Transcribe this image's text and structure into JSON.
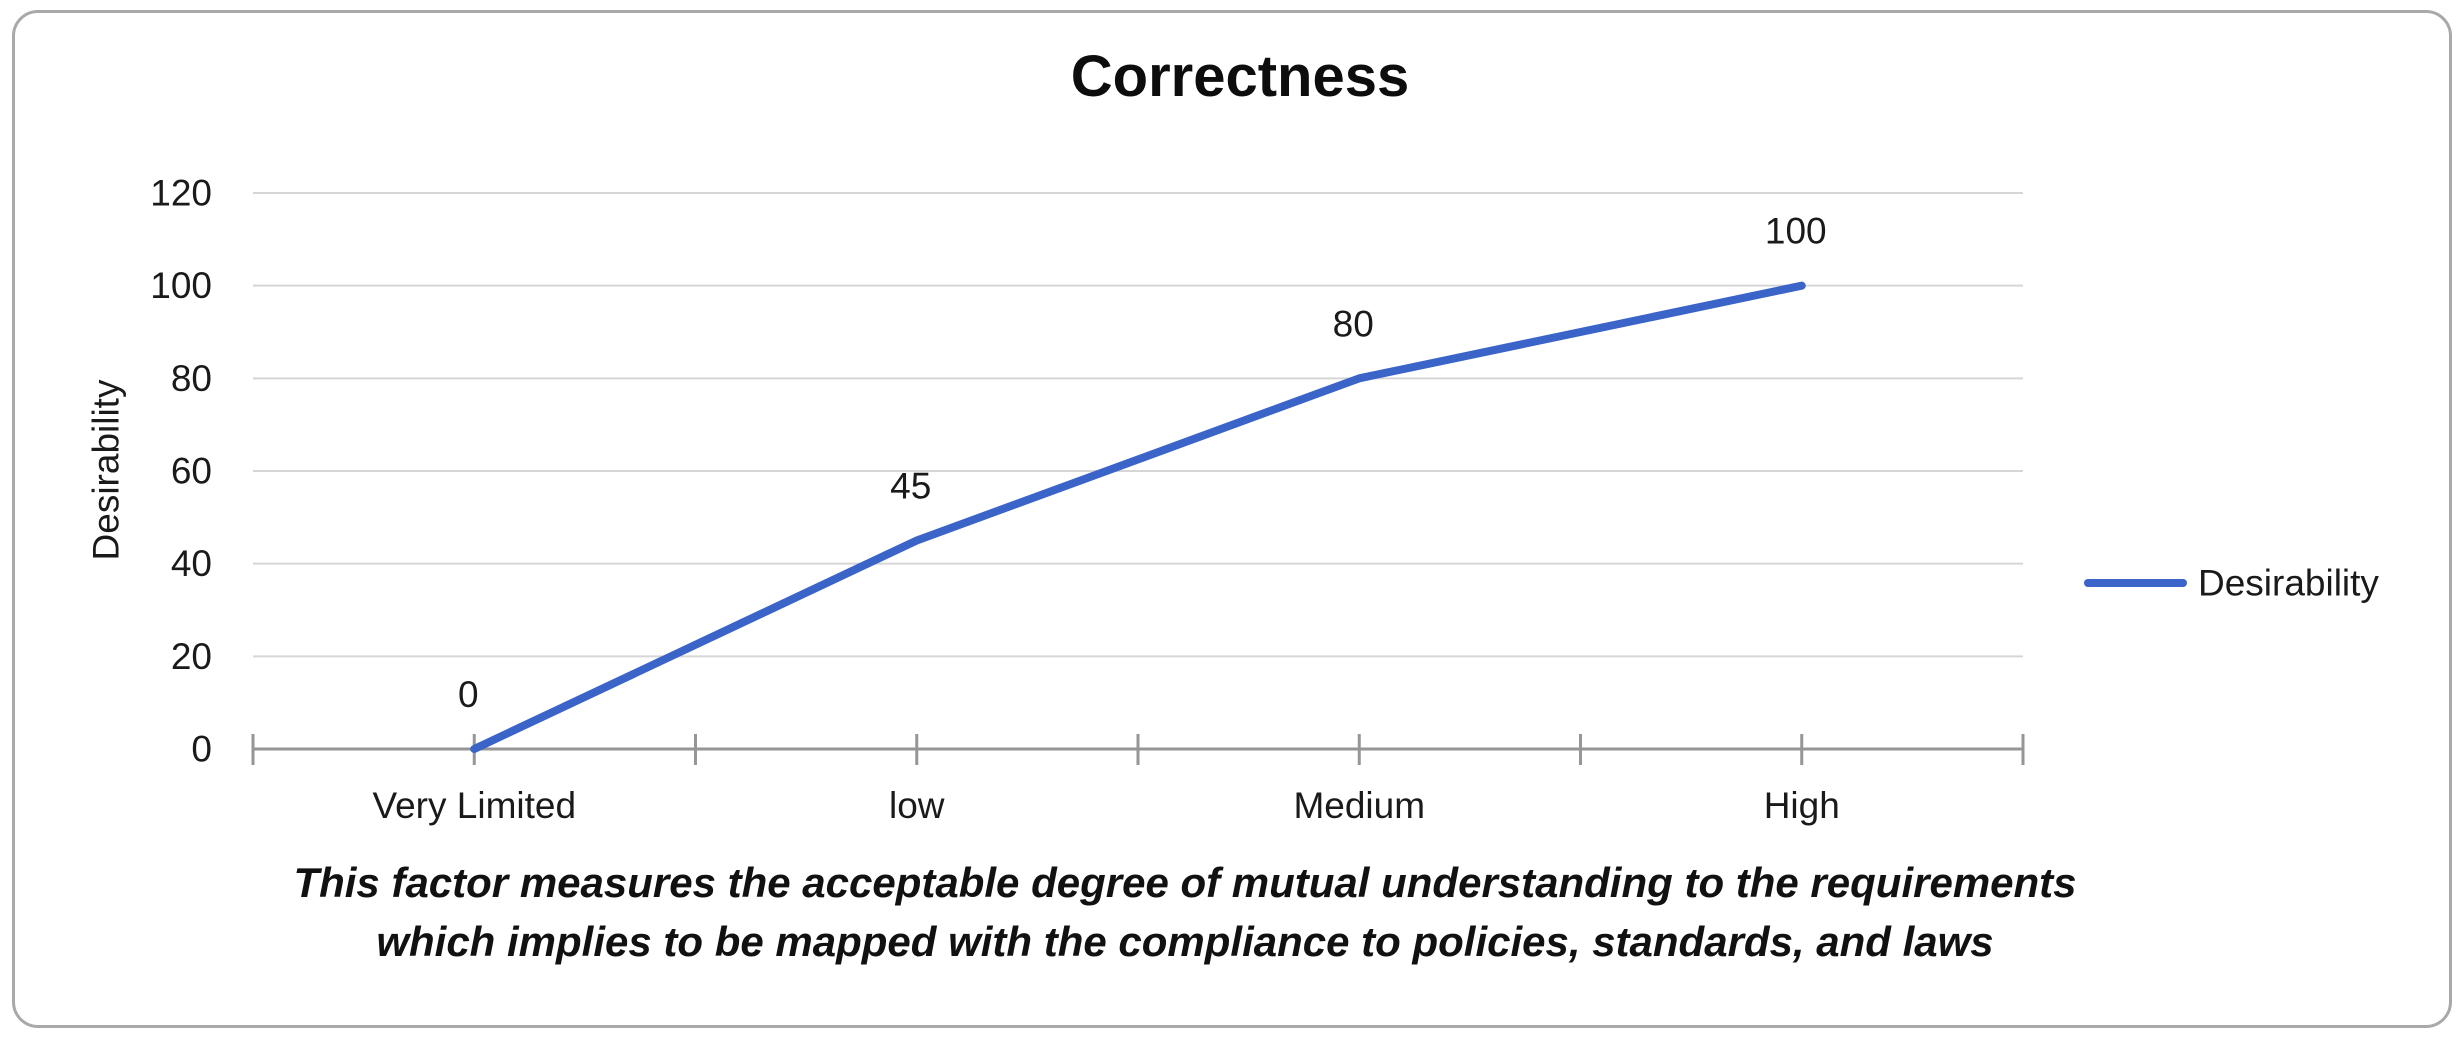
{
  "window": {
    "background_color": "#FFFFFF",
    "border_color": "#A9A9A9"
  },
  "chart": {
    "title": "Correctness",
    "y_axis": {
      "title": "Desirability"
    },
    "legend": {
      "label": "Desirability",
      "position": "right"
    },
    "caption": {
      "line1": "This factor measures the acceptable degree of mutual understanding to the requirements",
      "line2": "which implies to be mapped with the compliance to policies, standards, and laws"
    }
  },
  "colors": {
    "series_line": "#3A64C8",
    "gridline": "#D6D6D6",
    "axis": "#969696",
    "text": "#000000"
  },
  "chart_data": {
    "type": "line",
    "title": "Correctness",
    "categories": [
      "Very Limited",
      "low",
      "Medium",
      "High"
    ],
    "series": [
      {
        "name": "Desirability",
        "values": [
          0,
          45,
          80,
          100
        ]
      }
    ],
    "xlabel": "",
    "ylabel": "Desirability",
    "ylim": [
      0,
      120
    ],
    "yticks": [
      0,
      20,
      40,
      60,
      80,
      100,
      120
    ],
    "grid": true,
    "data_labels": [
      0,
      45,
      80,
      100
    ],
    "legend_position": "right",
    "caption": "This factor measures the acceptable degree of mutual understanding to the requirements which implies to be mapped with the compliance to policies, standards, and laws"
  }
}
